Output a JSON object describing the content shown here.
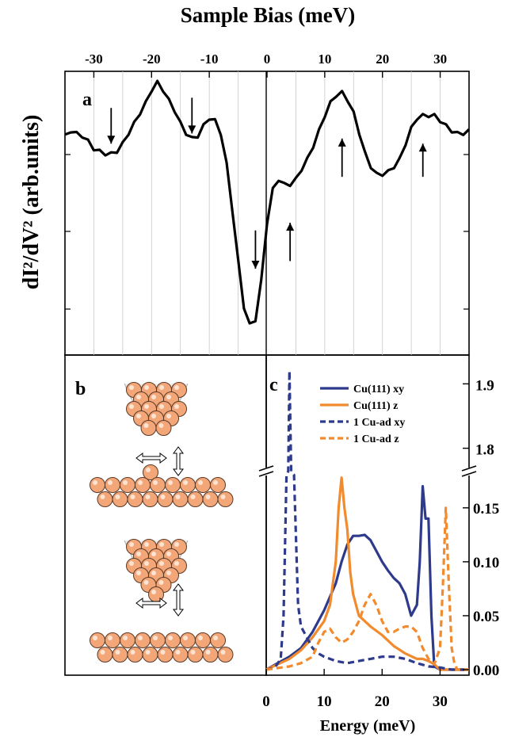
{
  "chart_data": [
    {
      "id": "a",
      "type": "line",
      "panel_label": "a",
      "title": "Sample Bias (meV)",
      "ylabel": "dI²/dV² (arb.units)",
      "xlim": [
        -35,
        35
      ],
      "ylim": [
        0,
        1
      ],
      "x_ticks": [
        -30,
        -20,
        -10,
        0,
        10,
        20,
        30
      ],
      "x_tick_labels": [
        "-30",
        "-20",
        "-10",
        "0",
        "10",
        "20",
        "30"
      ],
      "grid": "vertical",
      "series": [
        {
          "color": "#000000",
          "x": [
            -35,
            -34,
            -33,
            -32,
            -31,
            -30,
            -29,
            -28,
            -27,
            -26,
            -25,
            -24,
            -23,
            -22,
            -21,
            -20,
            -19,
            -18,
            -17,
            -16,
            -15,
            -14,
            -13,
            -12,
            -11,
            -10,
            -9,
            -8,
            -7,
            -6,
            -5,
            -4,
            -3,
            -2,
            -1,
            0,
            1,
            2,
            3,
            4,
            5,
            6,
            7,
            8,
            9,
            10,
            11,
            12,
            13,
            14,
            15,
            16,
            17,
            18,
            19,
            20,
            21,
            22,
            23,
            24,
            25,
            26,
            27,
            28,
            29,
            30,
            31,
            32,
            33,
            34,
            35
          ],
          "y": [
            0.79,
            0.81,
            0.8,
            0.79,
            0.77,
            0.74,
            0.73,
            0.72,
            0.72,
            0.73,
            0.76,
            0.8,
            0.84,
            0.88,
            0.92,
            0.97,
            1.0,
            0.97,
            0.93,
            0.89,
            0.84,
            0.8,
            0.78,
            0.79,
            0.83,
            0.86,
            0.85,
            0.8,
            0.68,
            0.5,
            0.3,
            0.12,
            0.05,
            0.07,
            0.22,
            0.45,
            0.58,
            0.62,
            0.6,
            0.6,
            0.62,
            0.66,
            0.7,
            0.75,
            0.81,
            0.87,
            0.92,
            0.95,
            0.96,
            0.93,
            0.88,
            0.8,
            0.72,
            0.67,
            0.64,
            0.64,
            0.65,
            0.67,
            0.7,
            0.76,
            0.82,
            0.86,
            0.87,
            0.87,
            0.87,
            0.85,
            0.83,
            0.81,
            0.8,
            0.8,
            0.81
          ]
        }
      ],
      "annotations": [
        {
          "x": -27,
          "dir": "down",
          "y_from": 0.9,
          "y_to": 0.76
        },
        {
          "x": -13,
          "dir": "down",
          "y_from": 0.94,
          "y_to": 0.8
        },
        {
          "x": -2,
          "dir": "down",
          "y_from": 0.42,
          "y_to": 0.27
        },
        {
          "x": 4,
          "dir": "up",
          "y_from": 0.3,
          "y_to": 0.45
        },
        {
          "x": 13,
          "dir": "up",
          "y_from": 0.63,
          "y_to": 0.78
        },
        {
          "x": 27,
          "dir": "up",
          "y_from": 0.63,
          "y_to": 0.76
        }
      ]
    },
    {
      "id": "c",
      "type": "line",
      "panel_label": "c",
      "xlabel": "Energy (meV)",
      "xlim": [
        0,
        35
      ],
      "x_ticks": [
        0,
        10,
        20,
        30
      ],
      "x_tick_labels": [
        "0",
        "10",
        "20",
        "30"
      ],
      "ylim_lower": [
        0,
        0.18
      ],
      "ylim_upper": [
        1.77,
        1.93
      ],
      "y_ticks_lower": [
        0.0,
        0.05,
        0.1,
        0.15
      ],
      "y_tick_labels_lower": [
        "0.00",
        "0.05",
        "0.10",
        "0.15"
      ],
      "y_ticks_upper": [
        1.8,
        1.9
      ],
      "y_tick_labels_upper": [
        "1.8",
        "1.9"
      ],
      "axis_break": "y",
      "legend": "top-right",
      "series": [
        {
          "name": "Cu(111) xy",
          "color": "#2e3a8c",
          "dash": "solid",
          "x": [
            0,
            2,
            4,
            6,
            8,
            10,
            12,
            13,
            14,
            15,
            16,
            17,
            18,
            19,
            20,
            21,
            22,
            23,
            24,
            25,
            26,
            26.5,
            27,
            27.5,
            28,
            28.5,
            29,
            30,
            32,
            35
          ],
          "y": [
            0.0,
            0.006,
            0.012,
            0.02,
            0.035,
            0.055,
            0.08,
            0.1,
            0.116,
            0.124,
            0.124,
            0.125,
            0.12,
            0.11,
            0.1,
            0.092,
            0.085,
            0.08,
            0.07,
            0.05,
            0.06,
            0.1,
            0.17,
            0.14,
            0.14,
            0.05,
            0.003,
            0.0,
            0.0,
            0.0
          ]
        },
        {
          "name": "Cu(111) z",
          "color": "#f28a2e",
          "dash": "solid",
          "x": [
            0,
            2,
            4,
            6,
            8,
            10,
            11,
            12,
            12.5,
            13,
            13.5,
            14,
            14.5,
            15,
            16,
            18,
            20,
            22,
            24,
            26,
            27,
            28,
            29,
            30,
            32,
            35
          ],
          "y": [
            0.0,
            0.005,
            0.01,
            0.018,
            0.03,
            0.045,
            0.06,
            0.1,
            0.15,
            0.178,
            0.15,
            0.13,
            0.09,
            0.07,
            0.05,
            0.04,
            0.032,
            0.022,
            0.015,
            0.01,
            0.01,
            0.008,
            0.005,
            0.0,
            0.0,
            0.0
          ]
        },
        {
          "name": "1 Cu-ad xy",
          "color": "#2e3a8c",
          "dash": "dashed",
          "x": [
            0,
            1.5,
            2.5,
            3,
            3.5,
            3.8,
            4.0,
            4.3,
            4.8,
            5.5,
            6,
            7,
            8,
            9,
            10,
            12,
            14,
            16,
            18,
            20,
            22,
            24,
            26,
            28,
            30,
            32,
            35
          ],
          "y": [
            0.0,
            0.002,
            0.01,
            0.05,
            0.3,
            1.0,
            1.92,
            1.0,
            0.3,
            0.06,
            0.04,
            0.03,
            0.02,
            0.015,
            0.012,
            0.008,
            0.006,
            0.008,
            0.01,
            0.012,
            0.012,
            0.01,
            0.006,
            0.003,
            0.002,
            0.0,
            0.0
          ]
        },
        {
          "name": "1 Cu-ad z",
          "color": "#f28a2e",
          "dash": "dashed",
          "x": [
            0,
            4,
            6,
            8,
            9,
            10,
            11,
            12,
            13,
            14,
            15,
            16,
            17,
            18,
            19,
            20,
            21,
            22,
            23,
            24,
            25,
            26,
            27,
            28,
            29,
            30,
            30.5,
            31,
            31.5,
            32,
            32.5,
            33,
            35
          ],
          "y": [
            0.0,
            0.003,
            0.006,
            0.012,
            0.025,
            0.035,
            0.038,
            0.03,
            0.025,
            0.028,
            0.035,
            0.045,
            0.06,
            0.07,
            0.06,
            0.045,
            0.035,
            0.035,
            0.038,
            0.04,
            0.04,
            0.035,
            0.02,
            0.01,
            0.005,
            0.02,
            0.08,
            0.15,
            0.08,
            0.02,
            0.005,
            0.0,
            0.0
          ]
        }
      ]
    }
  ],
  "panel_b": {
    "label": "b",
    "tip_color": "#f3a678",
    "atom_stroke": "#5a3a28"
  }
}
